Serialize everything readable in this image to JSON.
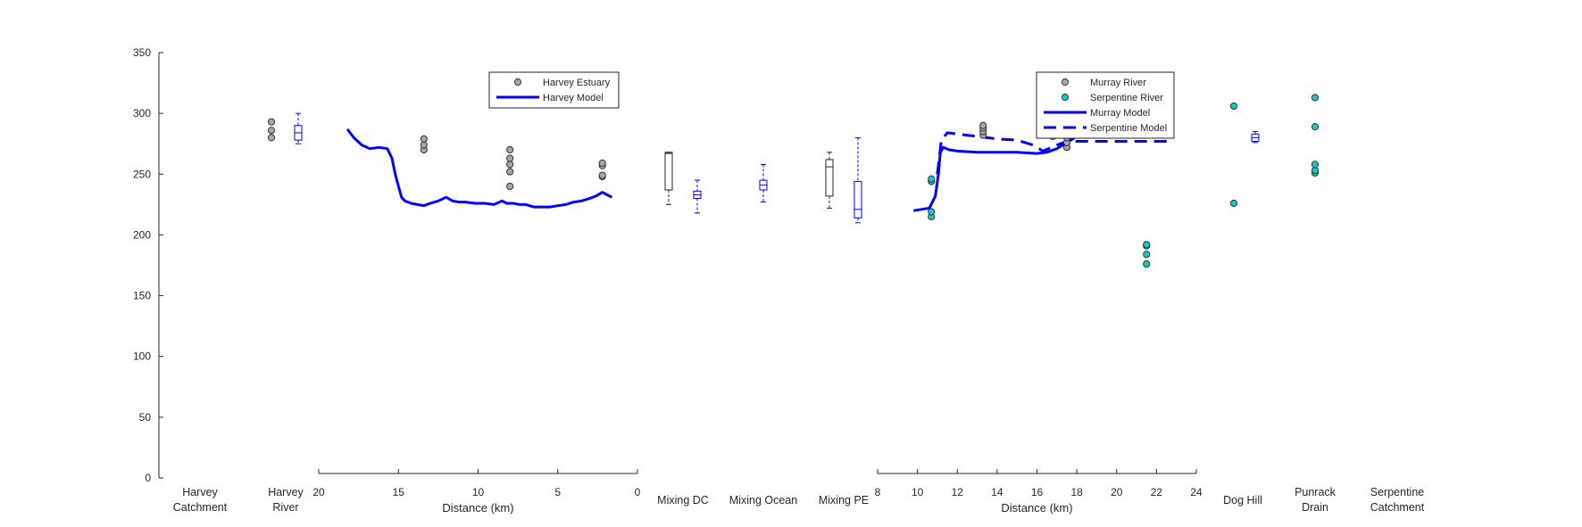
{
  "chart_data": {
    "type": "composite",
    "y_axis": {
      "ylim": [
        0,
        350
      ],
      "ticks": [
        "0",
        "50",
        "100",
        "150",
        "200",
        "250",
        "300",
        "350"
      ]
    },
    "colors": {
      "model": "#0000ff",
      "estuary_obs": "#a6a6a6",
      "serpentine_obs": "#17c8c8",
      "axis": "#262626"
    },
    "categories": [
      {
        "key": "harvey_catchment",
        "lines": [
          "Harvey",
          "Catchment"
        ]
      },
      {
        "key": "harvey_river",
        "lines": [
          "Harvey",
          "River"
        ]
      },
      {
        "key": "mixing_dc",
        "lines": [
          "Mixing DC"
        ]
      },
      {
        "key": "mixing_ocean",
        "lines": [
          "Mixing Ocean"
        ]
      },
      {
        "key": "mixing_pe",
        "lines": [
          "Mixing PE"
        ]
      },
      {
        "key": "dog_hill",
        "lines": [
          "Dog Hill"
        ]
      },
      {
        "key": "punrack_drain",
        "lines": [
          "Punrack",
          "Drain"
        ]
      },
      {
        "key": "serpentine_catchment",
        "lines": [
          "Serpentine",
          "Catchment"
        ]
      }
    ],
    "harvey_panel": {
      "xlabel": "Distance (km)",
      "xlim": [
        20,
        0
      ],
      "xticks": [
        "20",
        "15",
        "10",
        "5",
        "0"
      ],
      "legend": [
        "Harvey Estuary",
        "Harvey Model"
      ],
      "legend_position": "top-right",
      "model_line": {
        "name": "Harvey Model",
        "x": [
          18.2,
          17.8,
          17.3,
          16.8,
          16.2,
          15.7,
          15.4,
          15.2,
          15.0,
          14.8,
          14.6,
          14.2,
          13.8,
          13.4,
          13.0,
          12.5,
          12.0,
          11.6,
          11.2,
          10.8,
          10.2,
          9.6,
          9.0,
          8.5,
          8.2,
          7.8,
          7.4,
          7.0,
          6.5,
          6.0,
          5.5,
          5.0,
          4.5,
          4.0,
          3.5,
          3.0,
          2.6,
          2.2,
          1.9,
          1.6
        ],
        "y": [
          287,
          280,
          274,
          271,
          272,
          271,
          263,
          250,
          240,
          231,
          228,
          226,
          225,
          224,
          226,
          228,
          231,
          228,
          227,
          227,
          226,
          226,
          225,
          228,
          226,
          226,
          225,
          225,
          223,
          223,
          223,
          224,
          225,
          227,
          228,
          230,
          232,
          235,
          233,
          231
        ]
      },
      "estuary_obs": [
        {
          "x": 13.4,
          "values": [
            270,
            274,
            279
          ]
        },
        {
          "x": 8.0,
          "values": [
            240,
            252,
            258,
            263,
            270
          ]
        },
        {
          "x": 2.2,
          "values": [
            248,
            249,
            257,
            259
          ]
        }
      ]
    },
    "murray_panel": {
      "xlabel": "Distance (km)",
      "xlim": [
        8,
        24
      ],
      "xticks": [
        "8",
        "10",
        "12",
        "14",
        "16",
        "18",
        "20",
        "22",
        "24"
      ],
      "legend": [
        "Murray River",
        "Serpentine River",
        "Murray Model",
        "Serpentine Model"
      ],
      "legend_position": "top-right",
      "murray_model": {
        "name": "Murray Model",
        "x": [
          9.8,
          10.2,
          10.6,
          10.9,
          11.05,
          11.15,
          11.3,
          11.6,
          12.0,
          13.0,
          14.0,
          15.0,
          16.0,
          16.5,
          17.0,
          17.5,
          18.0,
          18.5,
          19.0
        ],
        "y": [
          220,
          221,
          222,
          232,
          250,
          268,
          272,
          270,
          269,
          268,
          268,
          268,
          267,
          268,
          271,
          276,
          281,
          285,
          289
        ]
      },
      "serpentine_model": {
        "name": "Serpentine Model",
        "x": [
          11.0,
          11.2,
          11.5,
          12.0,
          13.0,
          14.0,
          15.0,
          15.8,
          16.3,
          17.0,
          17.5,
          18.0,
          19.0,
          20.0,
          21.0,
          22.0,
          22.8
        ],
        "y": [
          250,
          278,
          284,
          283,
          281,
          279,
          278,
          274,
          269,
          274,
          277,
          277,
          277,
          277,
          277,
          277,
          277
        ]
      },
      "murray_obs": [
        {
          "x": 13.3,
          "values": [
            282,
            285,
            288,
            290
          ]
        },
        {
          "x": 16.8,
          "values": [
            281
          ]
        },
        {
          "x": 17.5,
          "values": [
            272,
            276,
            280
          ]
        }
      ],
      "serpentine_obs": [
        {
          "x": 10.7,
          "values": [
            215,
            219,
            244,
            246
          ]
        },
        {
          "x": 21.5,
          "values": [
            176,
            184,
            191,
            192
          ]
        }
      ]
    },
    "scatter_points": [
      {
        "category": "harvey_river",
        "group": "estuary_obs",
        "values": [
          280,
          286,
          293
        ]
      },
      {
        "category": "dog_hill",
        "group": "serpentine_obs",
        "values": [
          226,
          306
        ]
      },
      {
        "category": "punrack_drain",
        "group": "serpentine_obs",
        "values": [
          251,
          253,
          258,
          289,
          313
        ]
      }
    ],
    "boxplots": [
      {
        "category": "harvey_river",
        "color": "#0000ff",
        "whisker_low": 275,
        "q1": 278,
        "median": 284,
        "q3": 290,
        "whisker_high": 300
      },
      {
        "category": "mixing_dc",
        "color": "#262626",
        "whisker_low": 225,
        "q1": 237,
        "median": 267,
        "q3": 268,
        "whisker_high": 268
      },
      {
        "category": "mixing_dc",
        "color": "#0000ff",
        "whisker_low": 218,
        "q1": 230,
        "median": 233,
        "q3": 236,
        "whisker_high": 245
      },
      {
        "category": "mixing_ocean",
        "color": "#0000ff",
        "whisker_low": 227,
        "q1": 237,
        "median": 241,
        "q3": 245,
        "whisker_high": 258
      },
      {
        "category": "mixing_pe",
        "color": "#262626",
        "whisker_low": 222,
        "q1": 232,
        "median": 256,
        "q3": 262,
        "whisker_high": 268
      },
      {
        "category": "mixing_pe",
        "color": "#0000ff",
        "whisker_low": 210,
        "q1": 214,
        "median": 221,
        "q3": 244,
        "whisker_high": 280
      },
      {
        "category": "dog_hill",
        "color": "#0000ff",
        "whisker_low": 276,
        "q1": 277,
        "median": 280,
        "q3": 283,
        "whisker_high": 285
      }
    ]
  }
}
